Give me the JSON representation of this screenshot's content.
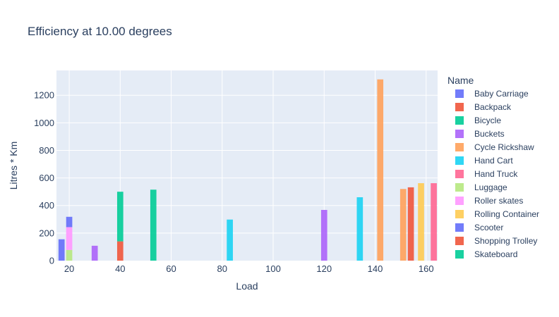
{
  "chart_data": {
    "type": "bar",
    "barmode": "stack",
    "title": "Efficiency at 10.00 degrees",
    "xlabel": "Load",
    "ylabel": "Litres * Km",
    "xlim": [
      15,
      164.5
    ],
    "ylim": [
      0,
      1380
    ],
    "xticks": [
      20,
      40,
      60,
      80,
      100,
      120,
      140,
      160
    ],
    "yticks": [
      0,
      200,
      400,
      600,
      800,
      1000,
      1200
    ],
    "grid": true,
    "plot_bgcolor": "#e5ecf6",
    "legend": {
      "title": "Name",
      "position": "right"
    },
    "series": [
      {
        "name": "Baby Carriage",
        "color": "#636efa",
        "points": [
          {
            "x": 17,
            "y": 155
          }
        ]
      },
      {
        "name": "Backpack",
        "color": "#EF553B",
        "points": [
          {
            "x": 40,
            "y": 140
          }
        ]
      },
      {
        "name": "Bicycle",
        "color": "#00cc96",
        "points": [
          {
            "x": 40,
            "y": 360
          },
          {
            "x": 53,
            "y": 515
          }
        ]
      },
      {
        "name": "Buckets",
        "color": "#ab63fa",
        "points": [
          {
            "x": 30,
            "y": 108
          },
          {
            "x": 120,
            "y": 368
          }
        ]
      },
      {
        "name": "Cycle Rickshaw",
        "color": "#FFA15A",
        "points": [
          {
            "x": 142,
            "y": 1315
          },
          {
            "x": 151,
            "y": 520
          }
        ]
      },
      {
        "name": "Hand Cart",
        "color": "#19d3f3",
        "points": [
          {
            "x": 83,
            "y": 298
          },
          {
            "x": 134,
            "y": 460
          }
        ]
      },
      {
        "name": "Hand Truck",
        "color": "#FF6692",
        "points": [
          {
            "x": 163,
            "y": 562
          }
        ]
      },
      {
        "name": "Luggage",
        "color": "#B6E880",
        "points": [
          {
            "x": 20,
            "y": 78
          }
        ]
      },
      {
        "name": "Roller skates",
        "color": "#FF97FF",
        "points": [
          {
            "x": 20,
            "y": 165
          }
        ]
      },
      {
        "name": "Rolling Container",
        "color": "#FECB52",
        "points": [
          {
            "x": 158,
            "y": 562
          }
        ]
      },
      {
        "name": "Scooter",
        "color": "#636efa",
        "points": [
          {
            "x": 20,
            "y": 75
          }
        ]
      },
      {
        "name": "Shopping Trolley",
        "color": "#EF553B",
        "points": [
          {
            "x": 154,
            "y": 532
          }
        ]
      },
      {
        "name": "Skateboard",
        "color": "#00cc96",
        "points": []
      }
    ]
  }
}
